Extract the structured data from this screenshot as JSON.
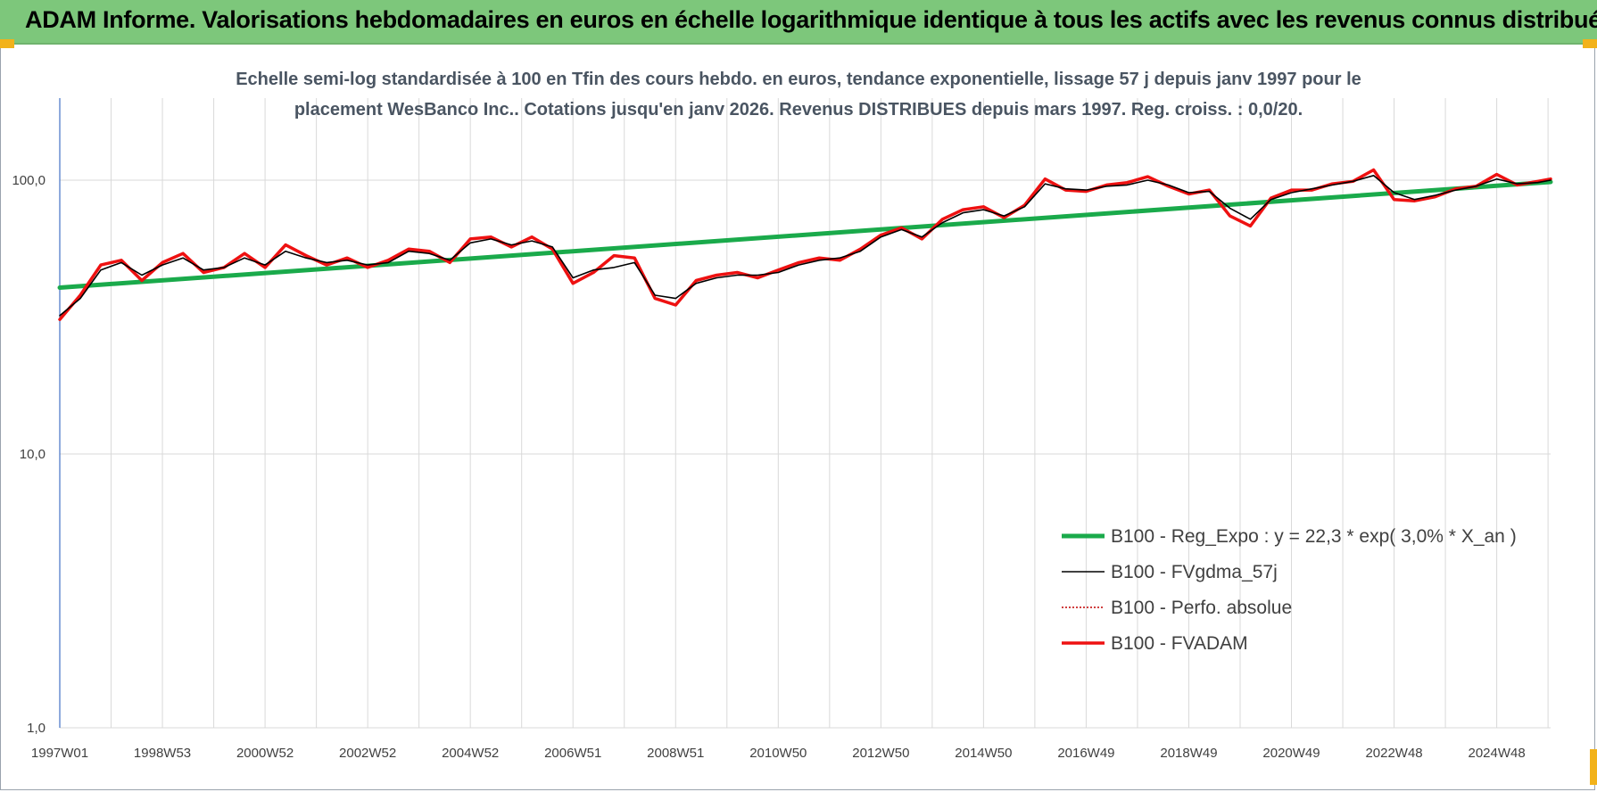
{
  "header": {
    "title": "ADAM Informe. Valorisations hebdomadaires en euros en échelle logarithmique identique à tous les actifs avec les revenus connus distribués"
  },
  "colors": {
    "header_bg": "#7dc77b",
    "regression": "#1aaa4b",
    "smoothed": "#000000",
    "perfo": "#c00000",
    "fvadam": "#ee1111",
    "grid": "#d9d9d9"
  },
  "chart_data": {
    "type": "line",
    "title_lines": [
      "Echelle semi-log standardisée à 100 en Tfin des cours hebdo. en euros, tendance exponentielle, lissage 57 j depuis janv 1997 pour le",
      "placement WesBanco Inc.. Cotations jusqu'en janv 2026. Revenus DISTRIBUES depuis mars 1997. Reg. croiss. : 0,0/20."
    ],
    "y_scale": "log",
    "ylim": [
      1,
      200
    ],
    "y_ticks": [
      {
        "value": 1,
        "label": "1,0"
      },
      {
        "value": 10,
        "label": "10,0"
      },
      {
        "value": 100,
        "label": "100,0"
      }
    ],
    "x_range_years": [
      1997.0,
      2026.05
    ],
    "x_ticks": [
      {
        "year": 1997.0,
        "label": "1997W01"
      },
      {
        "year": 1999.0,
        "label": "1998W53"
      },
      {
        "year": 2001.0,
        "label": "2000W52"
      },
      {
        "year": 2003.0,
        "label": "2002W52"
      },
      {
        "year": 2005.0,
        "label": "2004W52"
      },
      {
        "year": 2007.0,
        "label": "2006W51"
      },
      {
        "year": 2009.0,
        "label": "2008W51"
      },
      {
        "year": 2011.0,
        "label": "2010W50"
      },
      {
        "year": 2013.0,
        "label": "2012W50"
      },
      {
        "year": 2015.0,
        "label": "2014W50"
      },
      {
        "year": 2017.0,
        "label": "2016W49"
      },
      {
        "year": 2019.0,
        "label": "2018W49"
      },
      {
        "year": 2021.0,
        "label": "2020W49"
      },
      {
        "year": 2023.0,
        "label": "2022W48"
      },
      {
        "year": 2025.0,
        "label": "2024W48"
      }
    ],
    "grid": true,
    "legend_position": "lower-right",
    "series": [
      {
        "name": "B100 - Reg_Expo : y = 22,3 * exp( 3,0% *  X_an )",
        "key": "reg",
        "x": [
          1997.0,
          2026.05
        ],
        "y": [
          40.5,
          98.5
        ]
      },
      {
        "name": "B100 - FVgdma_57j",
        "key": "smooth",
        "x": [
          1997.0,
          1997.4,
          1997.8,
          1998.2,
          1998.6,
          1999.0,
          1999.4,
          1999.8,
          2000.2,
          2000.6,
          2001.0,
          2001.4,
          2001.8,
          2002.2,
          2002.6,
          2003.0,
          2003.4,
          2003.8,
          2004.2,
          2004.6,
          2005.0,
          2005.4,
          2005.8,
          2006.2,
          2006.6,
          2007.0,
          2007.4,
          2007.8,
          2008.2,
          2008.6,
          2009.0,
          2009.4,
          2009.8,
          2010.2,
          2010.6,
          2011.0,
          2011.4,
          2011.8,
          2012.2,
          2012.6,
          2013.0,
          2013.4,
          2013.8,
          2014.2,
          2014.6,
          2015.0,
          2015.4,
          2015.8,
          2016.2,
          2016.6,
          2017.0,
          2017.4,
          2017.8,
          2018.2,
          2018.6,
          2019.0,
          2019.4,
          2019.8,
          2020.2,
          2020.6,
          2021.0,
          2021.4,
          2021.8,
          2022.2,
          2022.6,
          2023.0,
          2023.4,
          2023.8,
          2024.2,
          2024.6,
          2025.0,
          2025.4,
          2025.8,
          2026.05
        ],
        "y": [
          32,
          37,
          47,
          50,
          45,
          49,
          52,
          47,
          48,
          52,
          49,
          55,
          52,
          50,
          51,
          49,
          50,
          55,
          54,
          51,
          59,
          61,
          58,
          60,
          57,
          44,
          47,
          48,
          50,
          38,
          37,
          42,
          44,
          45,
          45,
          46,
          49,
          51,
          52,
          55,
          62,
          66,
          62,
          70,
          76,
          78,
          74,
          80,
          97,
          93,
          92,
          95,
          96,
          100,
          96,
          90,
          91,
          79,
          72,
          85,
          90,
          93,
          96,
          99,
          104,
          90,
          85,
          88,
          92,
          95,
          101,
          97,
          98,
          100
        ]
      },
      {
        "name": "B100 - Perfo. absolue",
        "key": "perfo"
      },
      {
        "name": "B100 - FVADAM",
        "key": "fvadam",
        "x": [
          1997.0,
          1997.4,
          1997.8,
          1998.2,
          1998.6,
          1999.0,
          1999.4,
          1999.8,
          2000.2,
          2000.6,
          2001.0,
          2001.4,
          2001.8,
          2002.2,
          2002.6,
          2003.0,
          2003.4,
          2003.8,
          2004.2,
          2004.6,
          2005.0,
          2005.4,
          2005.8,
          2006.2,
          2006.6,
          2007.0,
          2007.4,
          2007.8,
          2008.2,
          2008.6,
          2009.0,
          2009.4,
          2009.8,
          2010.2,
          2010.6,
          2011.0,
          2011.4,
          2011.8,
          2012.2,
          2012.6,
          2013.0,
          2013.4,
          2013.8,
          2014.2,
          2014.6,
          2015.0,
          2015.4,
          2015.8,
          2016.2,
          2016.6,
          2017.0,
          2017.4,
          2017.8,
          2018.2,
          2018.6,
          2019.0,
          2019.4,
          2019.8,
          2020.2,
          2020.6,
          2021.0,
          2021.4,
          2021.8,
          2022.2,
          2022.6,
          2023.0,
          2023.4,
          2023.8,
          2024.2,
          2024.6,
          2025.0,
          2025.4,
          2025.8,
          2026.05
        ],
        "y": [
          31,
          38,
          49,
          51,
          43,
          50,
          54,
          46,
          48,
          54,
          48,
          58,
          53,
          49,
          52,
          48,
          51,
          56,
          55,
          50,
          61,
          62,
          57,
          62,
          56,
          42,
          46,
          53,
          52,
          37,
          35,
          43,
          45,
          46,
          44,
          47,
          50,
          52,
          51,
          56,
          63,
          67,
          61,
          72,
          78,
          80,
          73,
          81,
          101,
          92,
          91,
          96,
          98,
          103,
          95,
          89,
          92,
          74,
          68,
          86,
          92,
          92,
          97,
          99,
          109,
          85,
          84,
          87,
          93,
          95,
          105,
          96,
          99,
          101
        ]
      }
    ]
  }
}
